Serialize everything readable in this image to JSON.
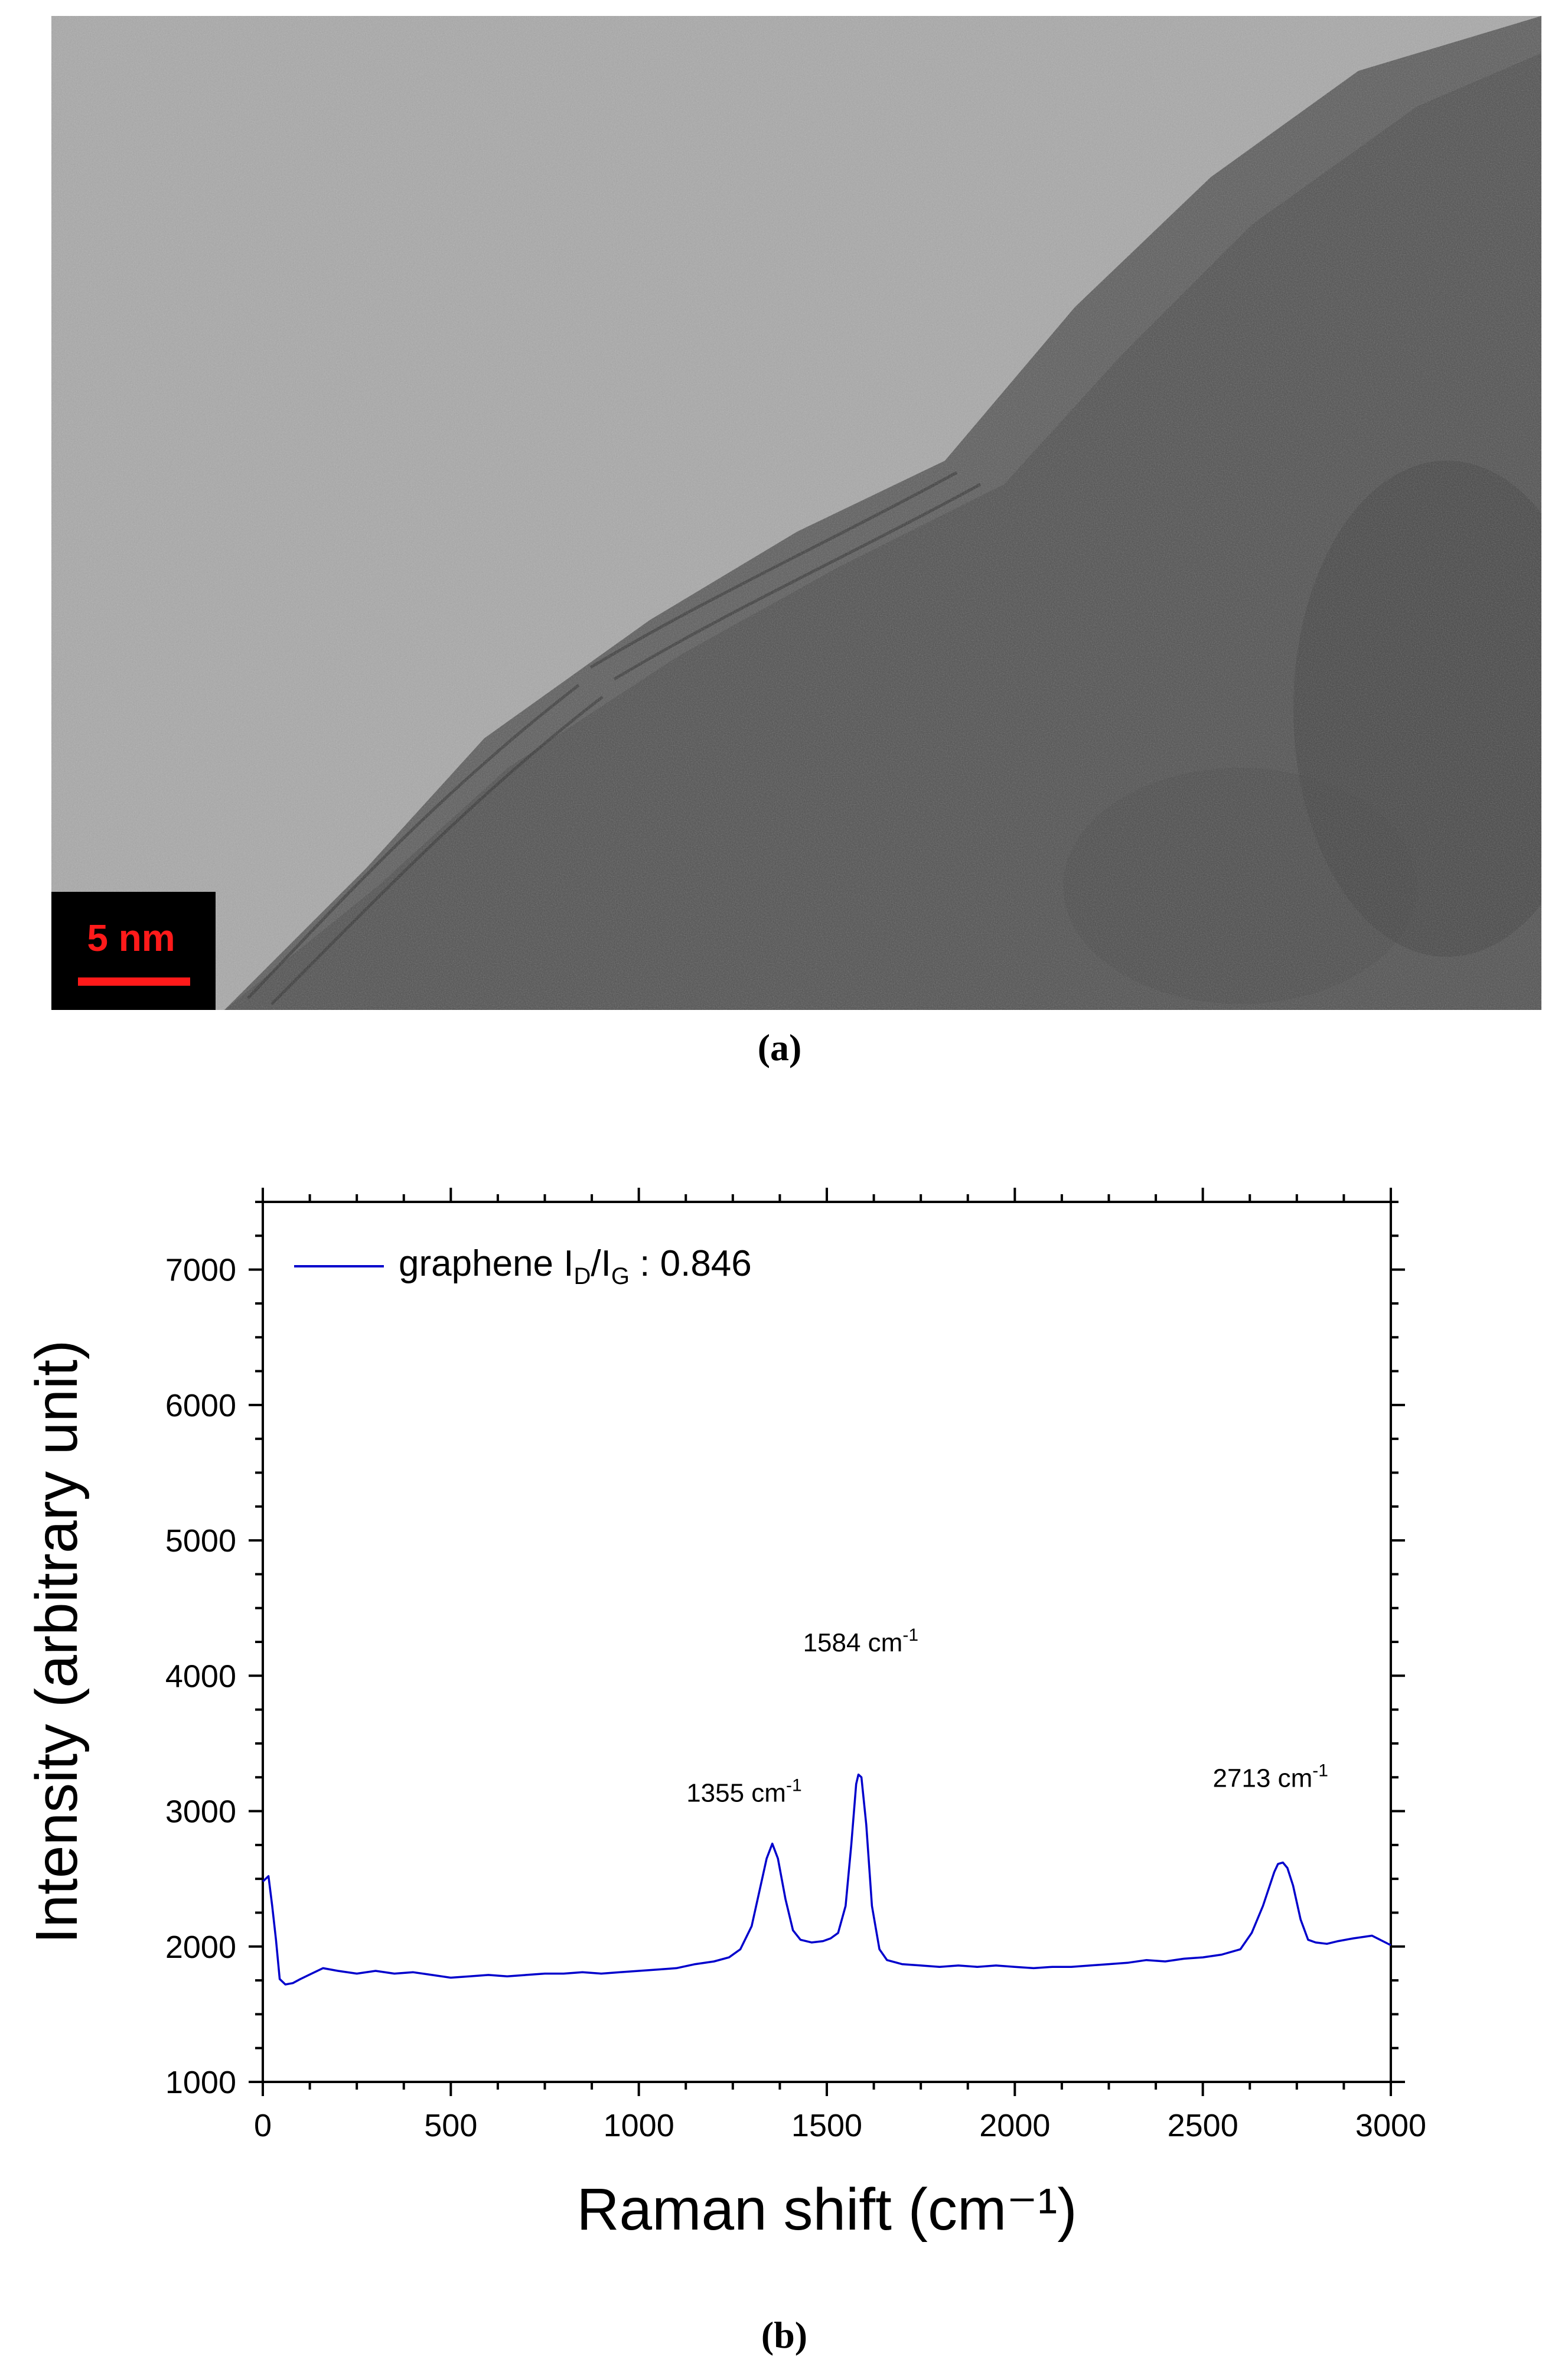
{
  "panel_a": {
    "scalebar_label": "5 nm",
    "caption": "(a)",
    "colors": {
      "scalebar_text": "#ff1a1a",
      "scalebar_line": "#ff1a1a",
      "scalebar_bg": "#000000"
    }
  },
  "panel_b": {
    "caption": "(b)"
  },
  "chart_data": {
    "type": "line",
    "xlabel": "Raman shift (cm⁻¹)",
    "ylabel": "Intensity (arbitrary unit)",
    "xlim": [
      0,
      3000
    ],
    "ylim": [
      1000,
      7500
    ],
    "x_ticks": [
      0,
      500,
      1000,
      1500,
      2000,
      2500,
      3000
    ],
    "y_ticks": [
      1000,
      2000,
      3000,
      4000,
      5000,
      6000,
      7000
    ],
    "x_tick_labels": [
      "0",
      "500",
      "1000",
      "1500",
      "2000",
      "2500",
      "3000"
    ],
    "y_tick_labels": [
      "1000",
      "2000",
      "3000",
      "4000",
      "5000",
      "6000",
      "7000"
    ],
    "grid": false,
    "legend_position": "top-left",
    "series": [
      {
        "name": "graphene I_D/I_G : 0.846",
        "color": "#0000cc",
        "points": [
          [
            0,
            2480
          ],
          [
            15,
            2520
          ],
          [
            25,
            2300
          ],
          [
            35,
            2050
          ],
          [
            45,
            1760
          ],
          [
            60,
            1720
          ],
          [
            80,
            1730
          ],
          [
            100,
            1760
          ],
          [
            130,
            1800
          ],
          [
            160,
            1840
          ],
          [
            200,
            1820
          ],
          [
            250,
            1800
          ],
          [
            300,
            1820
          ],
          [
            350,
            1800
          ],
          [
            400,
            1810
          ],
          [
            450,
            1790
          ],
          [
            500,
            1770
          ],
          [
            550,
            1780
          ],
          [
            600,
            1790
          ],
          [
            650,
            1780
          ],
          [
            700,
            1790
          ],
          [
            750,
            1800
          ],
          [
            800,
            1800
          ],
          [
            850,
            1810
          ],
          [
            900,
            1800
          ],
          [
            950,
            1810
          ],
          [
            1000,
            1820
          ],
          [
            1050,
            1830
          ],
          [
            1100,
            1840
          ],
          [
            1150,
            1870
          ],
          [
            1200,
            1890
          ],
          [
            1240,
            1920
          ],
          [
            1270,
            1980
          ],
          [
            1300,
            2150
          ],
          [
            1320,
            2400
          ],
          [
            1340,
            2650
          ],
          [
            1355,
            2760
          ],
          [
            1370,
            2650
          ],
          [
            1390,
            2350
          ],
          [
            1410,
            2120
          ],
          [
            1430,
            2050
          ],
          [
            1460,
            2030
          ],
          [
            1490,
            2040
          ],
          [
            1510,
            2060
          ],
          [
            1530,
            2100
          ],
          [
            1550,
            2300
          ],
          [
            1565,
            2750
          ],
          [
            1578,
            3200
          ],
          [
            1584,
            3270
          ],
          [
            1592,
            3250
          ],
          [
            1605,
            2900
          ],
          [
            1620,
            2300
          ],
          [
            1640,
            1980
          ],
          [
            1660,
            1900
          ],
          [
            1700,
            1870
          ],
          [
            1750,
            1860
          ],
          [
            1800,
            1850
          ],
          [
            1850,
            1860
          ],
          [
            1900,
            1850
          ],
          [
            1950,
            1860
          ],
          [
            2000,
            1850
          ],
          [
            2050,
            1840
          ],
          [
            2100,
            1850
          ],
          [
            2150,
            1850
          ],
          [
            2200,
            1860
          ],
          [
            2250,
            1870
          ],
          [
            2300,
            1880
          ],
          [
            2350,
            1900
          ],
          [
            2400,
            1890
          ],
          [
            2450,
            1910
          ],
          [
            2500,
            1920
          ],
          [
            2550,
            1940
          ],
          [
            2600,
            1980
          ],
          [
            2630,
            2100
          ],
          [
            2660,
            2300
          ],
          [
            2690,
            2550
          ],
          [
            2700,
            2610
          ],
          [
            2713,
            2620
          ],
          [
            2725,
            2580
          ],
          [
            2740,
            2450
          ],
          [
            2760,
            2200
          ],
          [
            2780,
            2050
          ],
          [
            2800,
            2030
          ],
          [
            2830,
            2020
          ],
          [
            2860,
            2040
          ],
          [
            2900,
            2060
          ],
          [
            2950,
            2080
          ],
          [
            3000,
            2010
          ]
        ]
      }
    ],
    "legend": {
      "text_main": "graphene I",
      "sub_d": "D",
      "slash": "/I",
      "sub_g": "G",
      "text_tail": " : 0.846"
    },
    "annotations": [
      {
        "id": "peak_d",
        "x": 1355,
        "y": 2760,
        "text": "1355 cm",
        "sup": "-1"
      },
      {
        "id": "peak_g",
        "x": 1584,
        "y": 3270,
        "text": "1584 cm",
        "sup": "-1"
      },
      {
        "id": "peak_2d",
        "x": 2713,
        "y": 2620,
        "text": "2713 cm",
        "sup": "-1"
      }
    ]
  }
}
